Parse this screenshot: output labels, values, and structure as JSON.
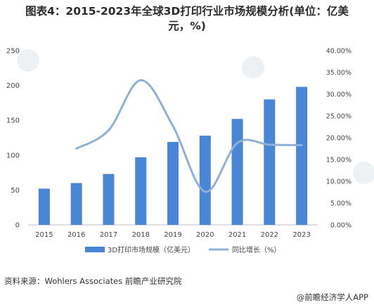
{
  "title_line1": "图表4：2015-2023年全球3D打印行业市场规模分析(单位：亿美",
  "title_line2": "元，%)",
  "source": "资料来源：Wohlers Associates 前瞻产业研究院",
  "brand": "@前瞻经济学人APP",
  "colors": {
    "bar": "#4a86d6",
    "line": "#8fb1d9",
    "axis": "#bfbfbf"
  },
  "chart_data": {
    "type": "bar+line",
    "categories": [
      "2015",
      "2016",
      "2017",
      "2018",
      "2019",
      "2020",
      "2021",
      "2022",
      "2023"
    ],
    "series": [
      {
        "name": "3D打印市场规模（亿美元）",
        "type": "bar",
        "axis": "left",
        "values": [
          52,
          60,
          73,
          97,
          119,
          128,
          152,
          180,
          198
        ]
      },
      {
        "name": "同比增长（%）",
        "type": "line",
        "axis": "right",
        "smooth": true,
        "values": [
          null,
          17.5,
          21.7,
          33.2,
          22.7,
          7.6,
          18.8,
          18.4,
          18.3
        ]
      }
    ],
    "left_axis": {
      "min": 0,
      "max": 250,
      "ticks": [
        "0",
        "50",
        "100",
        "150",
        "200",
        "250"
      ]
    },
    "right_axis": {
      "min": 0,
      "max": 40,
      "ticks": [
        "0.00%",
        "5.00%",
        "10.00%",
        "15.00%",
        "20.00%",
        "25.00%",
        "30.00%",
        "35.00%",
        "40.00%"
      ]
    },
    "legend_position": "bottom",
    "grid": false
  }
}
